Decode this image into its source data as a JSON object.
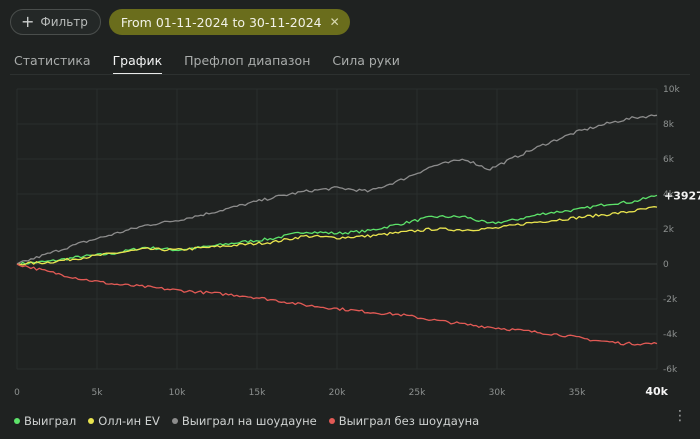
{
  "toolbar": {
    "filter_label": "Фильтр",
    "date_chip": "From 01-11-2024 to 30-11-2024"
  },
  "tabs": [
    {
      "label": "Статистика",
      "active": false
    },
    {
      "label": "График",
      "active": true
    },
    {
      "label": "Префлоп диапазон",
      "active": false
    },
    {
      "label": "Сила руки",
      "active": false
    }
  ],
  "colors": {
    "won": "#5de36a",
    "allin_ev": "#e9e44e",
    "showdown": "#8c8c8c",
    "non_showdown": "#e25a55"
  },
  "chart_data": {
    "type": "line",
    "xlim": [
      0,
      40000
    ],
    "ylim": [
      -6000,
      10000
    ],
    "x_ticks": [
      "0",
      "5k",
      "10k",
      "15k",
      "20k",
      "25k",
      "30k",
      "35k",
      "40k"
    ],
    "y_ticks": [
      "10k",
      "8k",
      "6k",
      "4k",
      "2k",
      "0",
      "-2k",
      "-4k",
      "-6k"
    ],
    "end_label": "+3927",
    "series": [
      {
        "name": "Выиграл",
        "color": "#5de36a",
        "x": [
          0,
          2000,
          4000,
          6000,
          8000,
          10000,
          12000,
          14000,
          16000,
          18000,
          20000,
          22000,
          24000,
          26000,
          28000,
          29500,
          31000,
          33000,
          35000,
          37000,
          38500,
          40000
        ],
        "values": [
          0,
          150,
          420,
          600,
          950,
          800,
          1000,
          1250,
          1450,
          1850,
          1750,
          1900,
          2300,
          2700,
          2700,
          2300,
          2500,
          2900,
          3100,
          3450,
          3550,
          3927
        ]
      },
      {
        "name": "Олл-ин EV",
        "color": "#e9e44e",
        "x": [
          0,
          2000,
          4000,
          6000,
          8000,
          10000,
          12000,
          14000,
          16000,
          18000,
          20000,
          22000,
          24000,
          26000,
          28000,
          30000,
          32000,
          34000,
          36000,
          38000,
          40000
        ],
        "values": [
          0,
          100,
          350,
          600,
          850,
          800,
          950,
          1100,
          1250,
          1600,
          1500,
          1600,
          1800,
          2000,
          1950,
          2050,
          2350,
          2550,
          2750,
          2950,
          3250
        ]
      },
      {
        "name": "Выиграл на шоудауне",
        "color": "#8c8c8c",
        "x": [
          0,
          2000,
          4000,
          6000,
          8000,
          10000,
          12000,
          14000,
          16000,
          18000,
          20000,
          22000,
          24000,
          26000,
          28000,
          29500,
          31000,
          33000,
          35000,
          37000,
          38500,
          40000
        ],
        "values": [
          0,
          600,
          1200,
          1700,
          2200,
          2500,
          2900,
          3350,
          3800,
          4150,
          4350,
          4150,
          4800,
          5600,
          6000,
          5400,
          6050,
          6850,
          7550,
          8050,
          8350,
          8500
        ]
      },
      {
        "name": "Выиграл без шоудауна",
        "color": "#e25a55",
        "x": [
          0,
          2000,
          4000,
          6000,
          8000,
          10000,
          12000,
          14000,
          16000,
          18000,
          20000,
          22000,
          24000,
          26000,
          28000,
          30000,
          32000,
          34000,
          36000,
          38000,
          40000
        ],
        "values": [
          0,
          -450,
          -850,
          -1150,
          -1300,
          -1500,
          -1650,
          -1800,
          -2050,
          -2350,
          -2550,
          -2750,
          -2900,
          -3200,
          -3450,
          -3650,
          -3850,
          -4050,
          -4350,
          -4550,
          -4550
        ]
      }
    ]
  }
}
